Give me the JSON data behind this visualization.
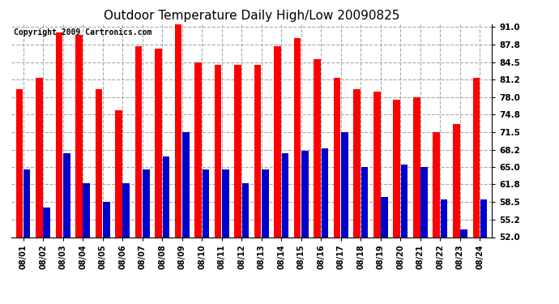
{
  "title": "Outdoor Temperature Daily High/Low 20090825",
  "copyright": "Copyright 2009 Cartronics.com",
  "dates": [
    "08/01",
    "08/02",
    "08/03",
    "08/04",
    "08/05",
    "08/06",
    "08/07",
    "08/08",
    "08/09",
    "08/10",
    "08/11",
    "08/12",
    "08/13",
    "08/14",
    "08/15",
    "08/16",
    "08/17",
    "08/18",
    "08/19",
    "08/20",
    "08/21",
    "08/22",
    "08/23",
    "08/24"
  ],
  "highs": [
    79.5,
    81.5,
    90.0,
    89.5,
    79.5,
    75.5,
    87.5,
    87.0,
    91.5,
    84.5,
    84.0,
    84.0,
    84.0,
    87.5,
    89.0,
    85.0,
    81.5,
    79.5,
    79.0,
    77.5,
    78.0,
    71.5,
    73.0,
    81.5
  ],
  "lows": [
    64.5,
    57.5,
    67.5,
    62.0,
    58.5,
    62.0,
    64.5,
    67.0,
    71.5,
    64.5,
    64.5,
    62.0,
    64.5,
    67.5,
    68.0,
    68.5,
    71.5,
    65.0,
    59.5,
    65.5,
    65.0,
    59.0,
    53.5,
    59.0
  ],
  "high_color": "#ff0000",
  "low_color": "#0000cc",
  "bg_color": "#ffffff",
  "plot_bg_color": "#ffffff",
  "grid_color": "#aaaaaa",
  "title_fontsize": 11,
  "copyright_fontsize": 7,
  "ymin": 52.0,
  "ymax": 91.5,
  "yticks": [
    52.0,
    55.2,
    58.5,
    61.8,
    65.0,
    68.2,
    71.5,
    74.8,
    78.0,
    81.2,
    84.5,
    87.8,
    91.0
  ]
}
